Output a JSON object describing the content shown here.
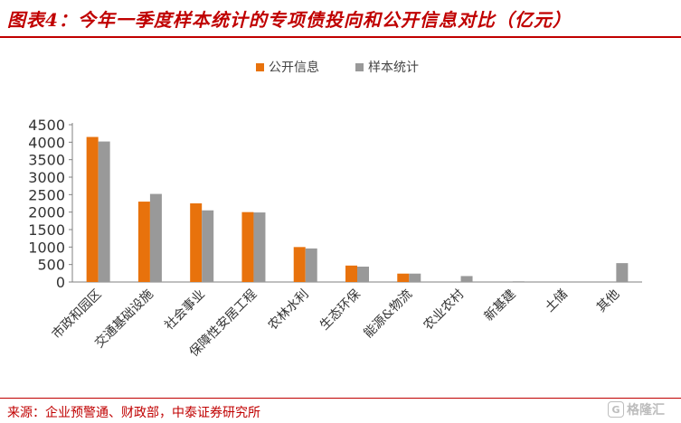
{
  "header": {
    "title": "图表4：今年一季度样本统计的专项债投向和公开信息对比（亿元）"
  },
  "footer": {
    "source": "来源：企业预警通、财政部，中泰证券研究所",
    "watermark": "格隆汇",
    "watermark_badge": "G"
  },
  "colors": {
    "accent": "#c00000",
    "series_public": "#e8720c",
    "series_sample": "#999999"
  },
  "chart_data": {
    "type": "bar",
    "title": "图表4：今年一季度样本统计的专项债投向和公开信息对比（亿元）",
    "categories": [
      "市政和园区",
      "交通基础设施",
      "社会事业",
      "保障性安居工程",
      "农林水利",
      "生态环保",
      "能源&物流",
      "农业农村",
      "新基建",
      "土储",
      "其他"
    ],
    "series": [
      {
        "name": "公开信息",
        "values": [
          4150,
          2300,
          2250,
          2000,
          1000,
          470,
          240,
          0,
          0,
          0,
          0
        ]
      },
      {
        "name": "样本统计",
        "values": [
          4020,
          2520,
          2050,
          1990,
          960,
          440,
          240,
          170,
          20,
          0,
          540
        ]
      }
    ],
    "ylim": [
      0,
      4500
    ],
    "yticks": [
      0,
      500,
      1000,
      1500,
      2000,
      2500,
      3000,
      3500,
      4000,
      4500
    ],
    "legend": "top-center",
    "grid": false,
    "xlabel": "",
    "ylabel": ""
  }
}
